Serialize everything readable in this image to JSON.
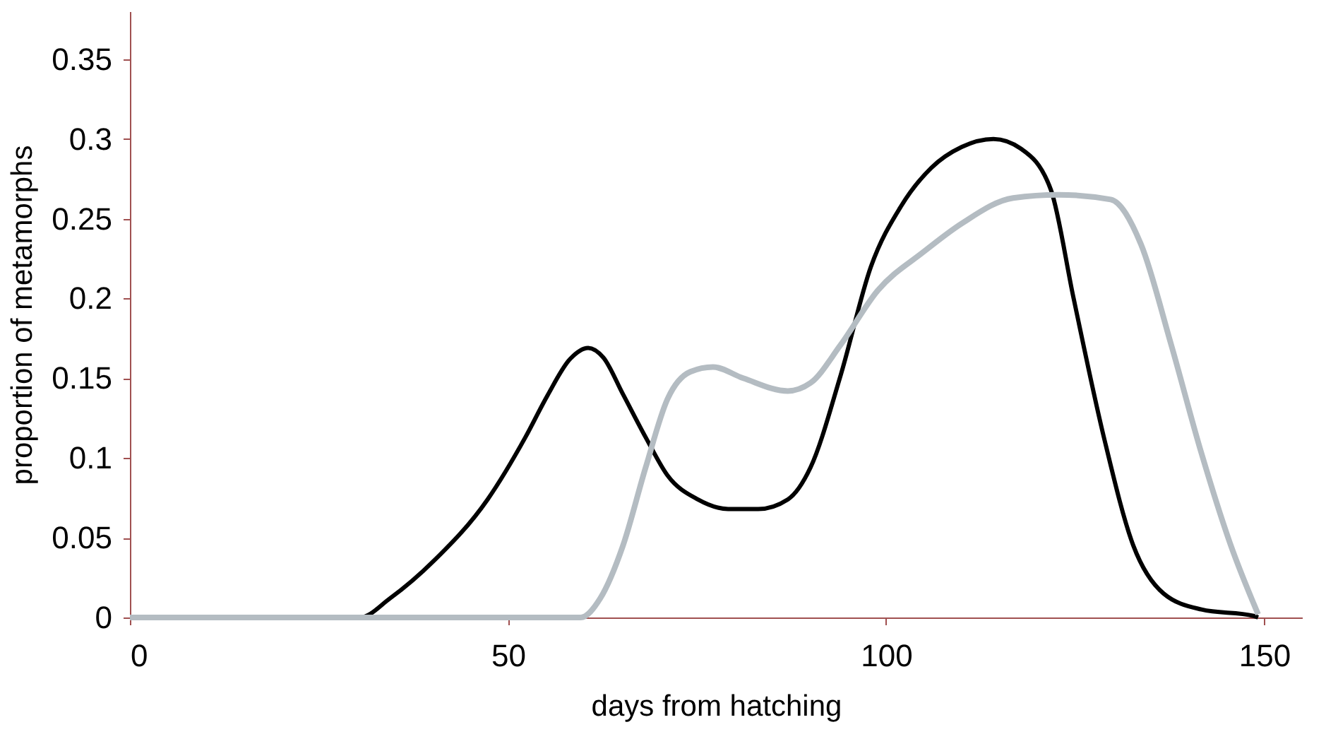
{
  "chart_data": {
    "type": "line",
    "xlabel": "days from hatching",
    "ylabel": "proportion of metamorphs",
    "xlim": [
      0,
      155
    ],
    "xticks": [
      0,
      50,
      100,
      150
    ],
    "ylim": [
      0,
      0.38
    ],
    "yticks": [
      0,
      0.05,
      0.1,
      0.15,
      0.2,
      0.25,
      0.3,
      0.35
    ],
    "grid": false,
    "legend": false,
    "marker": "none",
    "line_style": "solid",
    "series": [
      {
        "color": "#000000",
        "x": [
          0,
          30.4,
          34.4,
          40.3,
          47.3,
          52.3,
          55.2,
          58.2,
          60.6,
          62.6,
          65.2,
          68.2,
          71.1,
          75.1,
          79.1,
          83.1,
          87,
          90,
          94,
          98,
          102,
          106,
          110,
          114.2,
          117.8,
          121.8,
          124.8,
          128.8,
          132.7,
          136.7,
          141.7,
          148.6,
          149.2
        ],
        "values": [
          0,
          0,
          0.012,
          0.036,
          0.074,
          0.113,
          0.139,
          0.162,
          0.169,
          0.163,
          0.14,
          0.113,
          0.089,
          0.074,
          0.068,
          0.068,
          0.074,
          0.094,
          0.152,
          0.22,
          0.258,
          0.282,
          0.295,
          0.3,
          0.294,
          0.268,
          0.2,
          0.113,
          0.045,
          0.015,
          0.005,
          0.001,
          0
        ]
      },
      {
        "color": "#b4bcc2",
        "x": [
          0,
          45.7,
          59.6,
          62.2,
          65.2,
          68.2,
          71.1,
          74.1,
          77.1,
          81.1,
          87,
          90,
          94,
          98.9,
          104.9,
          110,
          116.8,
          122.8,
          129.7,
          133.7,
          137.7,
          141.7,
          145.6,
          149.2
        ],
        "values": [
          0,
          0,
          0,
          0.012,
          0.045,
          0.094,
          0.137,
          0.154,
          0.157,
          0.15,
          0.142,
          0.147,
          0.171,
          0.205,
          0.229,
          0.247,
          0.263,
          0.265,
          0.262,
          0.234,
          0.171,
          0.103,
          0.045,
          0.002
        ]
      }
    ]
  }
}
